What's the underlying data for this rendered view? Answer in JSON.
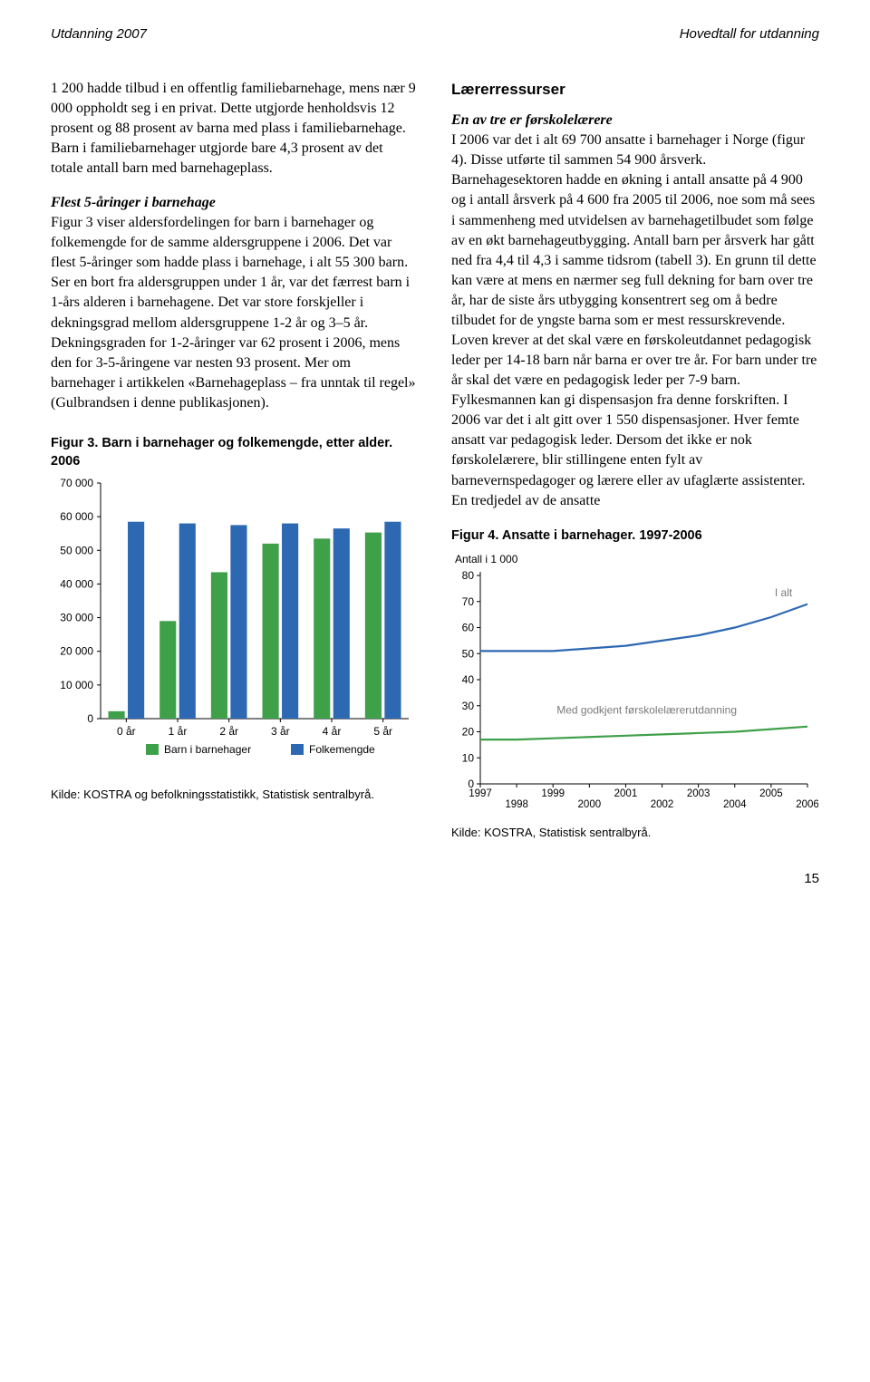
{
  "header": {
    "left": "Utdanning 2007",
    "right": "Hovedtall for utdanning"
  },
  "left_col": {
    "para1": "1 200 hadde tilbud i en offentlig familiebarnehage, mens nær 9 000 oppholdt seg i en privat. Dette utgjorde henholdsvis 12 prosent og 88 prosent av barna med plass i familiebarnehage. Barn i familiebarnehager utgjorde bare 4,3 prosent av det totale antall barn med barnehageplass.",
    "sub2": "Flest 5-åringer i barnehage",
    "para2": "Figur 3 viser aldersfordelingen for barn i barnehager og folkemengde for de samme aldersgruppene i 2006. Det var flest 5-åringer som hadde plass i barnehage, i alt 55 300 barn. Ser en bort fra aldersgruppen under 1 år, var det færrest barn i 1-års alderen i barnehagene. Det var store forskjeller i dekningsgrad mellom aldersgruppene 1-2 år og 3–5 år. Dekningsgraden for 1-2-åringer var 62 prosent i 2006, mens den for 3-5-åringene var nesten 93 prosent. Mer om barnehager i artikkelen «Barnehageplass – fra unntak til regel» (Gulbrandsen i denne publikasjonen)."
  },
  "right_col": {
    "section": "Lærerressurser",
    "sub1": "En av tre er førskolelærere",
    "para1": "I 2006 var det i alt 69 700 ansatte i barnehager i Norge (figur 4). Disse utførte til sammen 54 900 årsverk. Barnehagesektoren hadde en økning i antall ansatte på 4 900 og i antall årsverk på 4 600 fra 2005 til 2006, noe som må sees i sammenheng med utvidelsen av barnehagetilbudet som følge av en økt barnehageutbygging. Antall barn per årsverk har gått ned fra 4,4 til 4,3 i samme tidsrom (tabell 3). En grunn til dette kan være at mens en nærmer seg full dekning for barn over tre år, har de siste års utbygging konsentrert seg om å bedre tilbudet for de yngste barna som er mest ressurskrevende. Loven krever at det skal være en førskoleutdannet pedagogisk leder per 14-18 barn når barna er over tre år. For barn under tre år skal det være en pedagogisk leder per 7-9 barn. Fylkesmannen kan gi dispensasjon fra denne forskriften. I 2006 var det i alt gitt over 1 550 dispensasjoner. Hver femte ansatt var pedagogisk leder. Dersom det ikke er nok førskolelærere, blir stillingene enten fylt av barnevernspedagoger og lærere eller av ufaglærte assistenter. En tredjedel av de ansatte"
  },
  "fig3": {
    "title": "Figur 3. Barn i barnehager og folkemengde, etter alder. 2006",
    "type": "bar",
    "categories": [
      "0 år",
      "1 år",
      "2 år",
      "3 år",
      "4 år",
      "5 år"
    ],
    "series": [
      {
        "name": "Barn i barnehager",
        "color": "#3fa04a",
        "values": [
          2200,
          29000,
          43500,
          52000,
          53500,
          55300
        ]
      },
      {
        "name": "Folkemengde",
        "color": "#2d68b2",
        "values": [
          58500,
          58000,
          57500,
          58000,
          56500,
          58500
        ]
      }
    ],
    "ylim": [
      0,
      70000
    ],
    "ytick_step": 10000,
    "ylabels": [
      "0",
      "10 000",
      "20 000",
      "30 000",
      "40 000",
      "50 000",
      "60 000",
      "70 000"
    ],
    "background": "#ffffff",
    "grid_color": "#000000",
    "tick_fontsize": 12,
    "legend_fontsize": 12,
    "source": "Kilde: KOSTRA og befolkningsstatistikk, Statistisk sentralbyrå."
  },
  "fig4": {
    "title": "Figur 4. Ansatte i barnehager. 1997-2006",
    "type": "line",
    "ylabel": "Antall i 1 000",
    "x_values": [
      1997,
      1998,
      1999,
      2000,
      2001,
      2002,
      2003,
      2004,
      2005,
      2006
    ],
    "series": [
      {
        "name": "I alt",
        "color": "#2d68b2",
        "width": 2.2,
        "values": [
          51,
          51,
          51,
          52,
          53,
          55,
          57,
          60,
          64,
          69
        ]
      },
      {
        "name": "Med godkjent førskolelærerutdanning",
        "color": "#3fa04a",
        "width": 2.2,
        "values": [
          17,
          17,
          17.5,
          18,
          18.5,
          19,
          19.5,
          20,
          21,
          22
        ]
      }
    ],
    "ylim": [
      0,
      80
    ],
    "ytick_step": 10,
    "xlim": [
      1997,
      2006
    ],
    "xlabels": [
      "1997",
      "1998",
      "1999",
      "2000",
      "2001",
      "2002",
      "2003",
      "2004",
      "2005",
      "2006"
    ],
    "label_fill": "#7a7a7a",
    "background": "#ffffff",
    "tick_fontsize": 12,
    "source": "Kilde: KOSTRA, Statistisk sentralbyrå."
  },
  "page_number": "15"
}
